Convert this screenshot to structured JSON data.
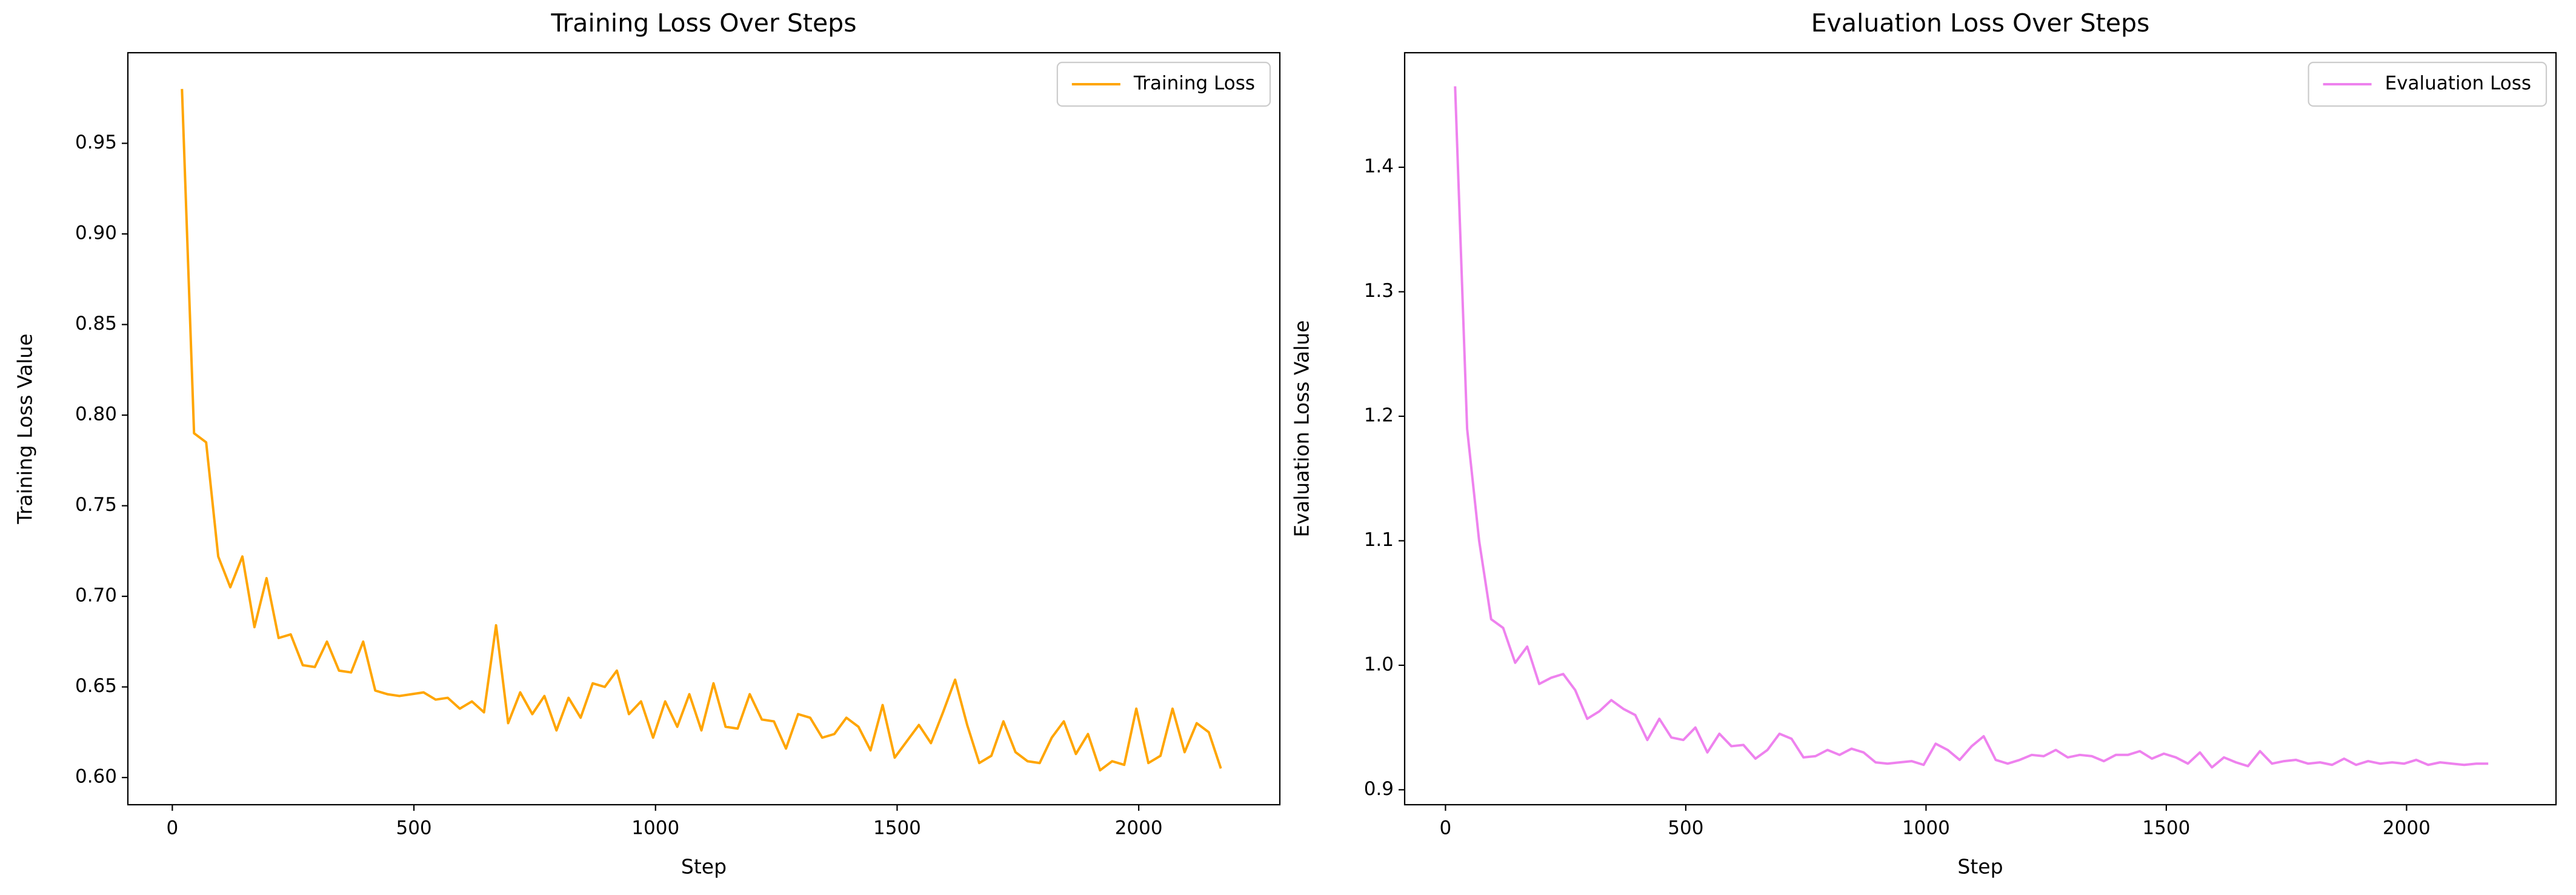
{
  "chart_data": [
    {
      "type": "line",
      "title": "Training Loss Over Steps",
      "xlabel": "Step",
      "ylabel": "Training Loss Value",
      "x": [
        20,
        45,
        70,
        95,
        120,
        145,
        170,
        195,
        220,
        245,
        270,
        295,
        320,
        345,
        370,
        395,
        420,
        445,
        470,
        495,
        520,
        545,
        570,
        595,
        620,
        645,
        670,
        695,
        720,
        745,
        770,
        795,
        820,
        845,
        870,
        895,
        920,
        945,
        970,
        995,
        1020,
        1045,
        1070,
        1095,
        1120,
        1145,
        1170,
        1195,
        1220,
        1245,
        1270,
        1295,
        1320,
        1345,
        1370,
        1395,
        1420,
        1445,
        1470,
        1495,
        1520,
        1545,
        1570,
        1595,
        1620,
        1645,
        1670,
        1695,
        1720,
        1745,
        1770,
        1795,
        1820,
        1845,
        1870,
        1895,
        1920,
        1945,
        1970,
        1995,
        2020,
        2045,
        2070,
        2095,
        2120,
        2145,
        2170
      ],
      "series": [
        {
          "name": "Training Loss",
          "color": "#ffa500",
          "values": [
            0.98,
            0.79,
            0.785,
            0.722,
            0.705,
            0.722,
            0.683,
            0.71,
            0.677,
            0.679,
            0.662,
            0.661,
            0.675,
            0.659,
            0.658,
            0.675,
            0.648,
            0.646,
            0.645,
            0.646,
            0.647,
            0.643,
            0.644,
            0.638,
            0.642,
            0.636,
            0.684,
            0.63,
            0.647,
            0.635,
            0.645,
            0.626,
            0.644,
            0.633,
            0.652,
            0.65,
            0.659,
            0.635,
            0.642,
            0.622,
            0.642,
            0.628,
            0.646,
            0.626,
            0.652,
            0.628,
            0.627,
            0.646,
            0.632,
            0.631,
            0.616,
            0.635,
            0.633,
            0.622,
            0.624,
            0.633,
            0.628,
            0.615,
            0.64,
            0.611,
            0.62,
            0.629,
            0.619,
            0.636,
            0.654,
            0.629,
            0.608,
            0.612,
            0.631,
            0.614,
            0.609,
            0.608,
            0.622,
            0.631,
            0.613,
            0.624,
            0.604,
            0.609,
            0.607,
            0.638,
            0.608,
            0.612,
            0.638,
            0.614,
            0.63,
            0.625,
            0.605
          ]
        }
      ],
      "xlim": [
        -92,
        2292
      ],
      "ylim": [
        0.585,
        1.0
      ],
      "xticks": [
        0,
        500,
        1000,
        1500,
        2000
      ],
      "yticks": [
        {
          "value": 0.6,
          "label": "0.60"
        },
        {
          "value": 0.65,
          "label": "0.65"
        },
        {
          "value": 0.7,
          "label": "0.70"
        },
        {
          "value": 0.75,
          "label": "0.75"
        },
        {
          "value": 0.8,
          "label": "0.80"
        },
        {
          "value": 0.85,
          "label": "0.85"
        },
        {
          "value": 0.9,
          "label": "0.90"
        },
        {
          "value": 0.95,
          "label": "0.95"
        }
      ],
      "legend": "upper right"
    },
    {
      "type": "line",
      "title": "Evaluation Loss Over Steps",
      "xlabel": "Step",
      "ylabel": "Evaluation Loss Value",
      "x": [
        20,
        45,
        70,
        95,
        120,
        145,
        170,
        195,
        220,
        245,
        270,
        295,
        320,
        345,
        370,
        395,
        420,
        445,
        470,
        495,
        520,
        545,
        570,
        595,
        620,
        645,
        670,
        695,
        720,
        745,
        770,
        795,
        820,
        845,
        870,
        895,
        920,
        945,
        970,
        995,
        1020,
        1045,
        1070,
        1095,
        1120,
        1145,
        1170,
        1195,
        1220,
        1245,
        1270,
        1295,
        1320,
        1345,
        1370,
        1395,
        1420,
        1445,
        1470,
        1495,
        1520,
        1545,
        1570,
        1595,
        1620,
        1645,
        1670,
        1695,
        1720,
        1745,
        1770,
        1795,
        1820,
        1845,
        1870,
        1895,
        1920,
        1945,
        1970,
        1995,
        2020,
        2045,
        2070,
        2095,
        2120,
        2145,
        2170
      ],
      "series": [
        {
          "name": "Evaluation Loss",
          "color": "#ee82ee",
          "values": [
            1.465,
            1.19,
            1.1,
            1.037,
            1.03,
            1.002,
            1.015,
            0.985,
            0.99,
            0.993,
            0.98,
            0.957,
            0.963,
            0.972,
            0.965,
            0.96,
            0.94,
            0.957,
            0.942,
            0.94,
            0.95,
            0.93,
            0.945,
            0.935,
            0.936,
            0.925,
            0.932,
            0.945,
            0.941,
            0.926,
            0.927,
            0.932,
            0.928,
            0.933,
            0.93,
            0.922,
            0.921,
            0.922,
            0.923,
            0.92,
            0.937,
            0.932,
            0.924,
            0.935,
            0.943,
            0.924,
            0.921,
            0.924,
            0.928,
            0.927,
            0.932,
            0.926,
            0.928,
            0.927,
            0.923,
            0.928,
            0.928,
            0.931,
            0.925,
            0.929,
            0.926,
            0.921,
            0.93,
            0.918,
            0.926,
            0.922,
            0.919,
            0.931,
            0.921,
            0.923,
            0.924,
            0.921,
            0.922,
            0.92,
            0.925,
            0.92,
            0.923,
            0.921,
            0.922,
            0.921,
            0.924,
            0.92,
            0.922,
            0.921,
            0.92,
            0.921,
            0.921
          ]
        }
      ],
      "xlim": [
        -85,
        2311
      ],
      "ylim": [
        0.888,
        1.492
      ],
      "xticks": [
        0,
        500,
        1000,
        1500,
        2000
      ],
      "yticks": [
        0.9,
        {
          "value": 1,
          "label": "1.0"
        },
        1.1,
        1.2,
        1.3,
        1.4
      ],
      "legend": "upper right"
    }
  ]
}
